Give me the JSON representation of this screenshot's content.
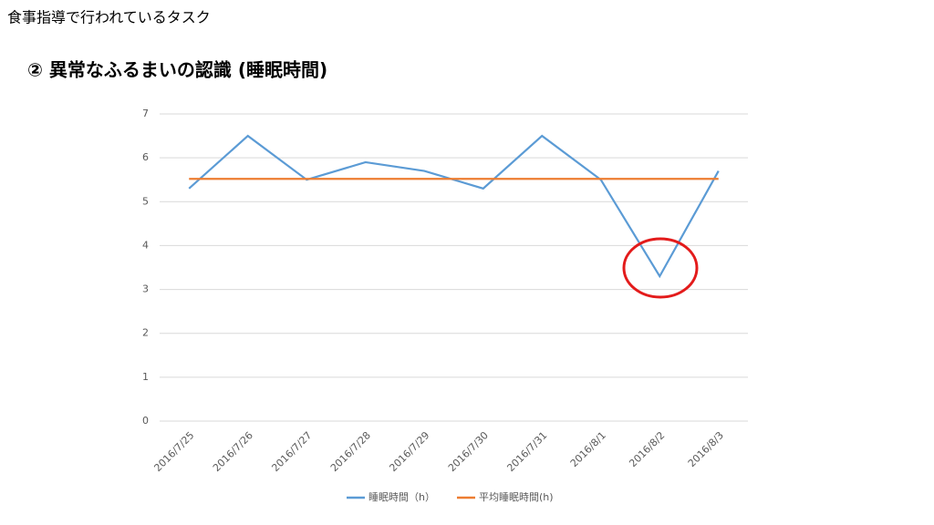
{
  "slide_title": "食事指導で行われているタスク",
  "heading": "② 異常なふるまいの認識 (睡眠時間)",
  "chart_data": {
    "type": "line",
    "categories": [
      "2016/7/25",
      "2016/7/26",
      "2016/7/27",
      "2016/7/28",
      "2016/7/29",
      "2016/7/30",
      "2016/7/31",
      "2016/8/1",
      "2016/8/2",
      "2016/8/3"
    ],
    "series": [
      {
        "name": "睡眠時間（h）",
        "color": "#5b9bd5",
        "values": [
          5.3,
          6.5,
          5.5,
          5.9,
          5.7,
          5.3,
          6.5,
          5.5,
          3.3,
          5.7
        ]
      },
      {
        "name": "平均睡眠時間(h)",
        "color": "#ed7d31",
        "values": [
          5.52,
          5.52,
          5.52,
          5.52,
          5.52,
          5.52,
          5.52,
          5.52,
          5.52,
          5.52
        ]
      }
    ],
    "ylim": [
      0,
      7
    ],
    "yticks": [
      0,
      1,
      2,
      3,
      4,
      5,
      6,
      7
    ],
    "grid": true,
    "legend": "bottom"
  }
}
